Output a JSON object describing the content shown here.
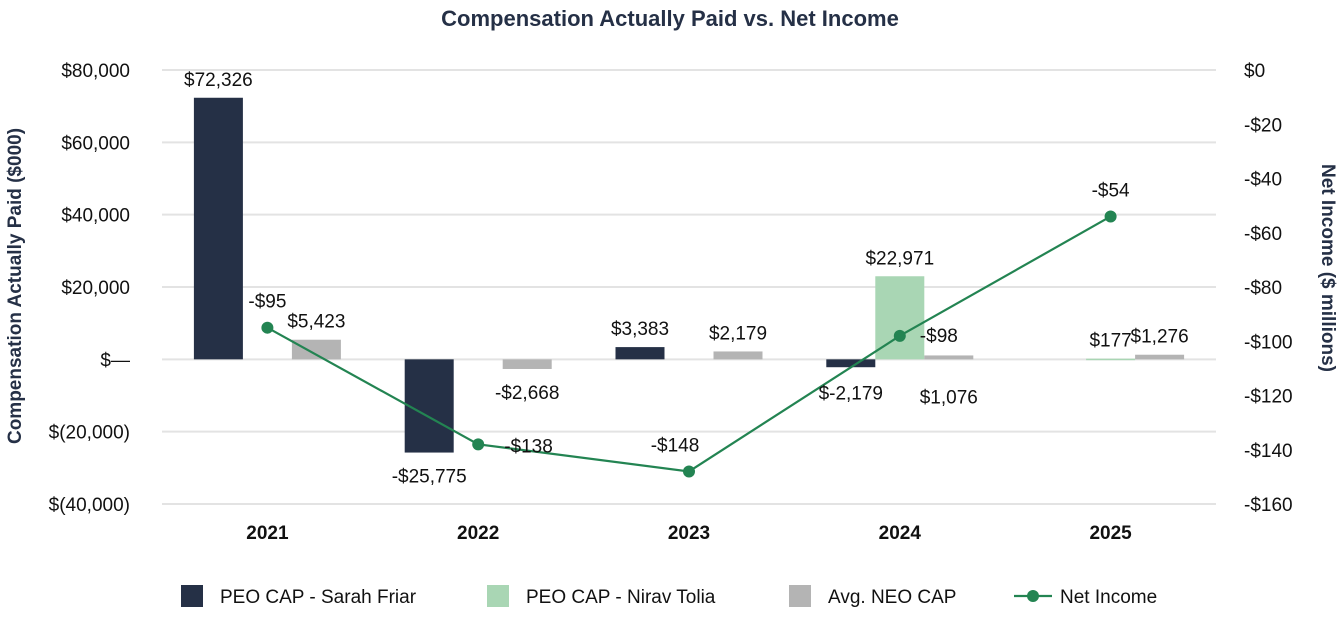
{
  "chart_data": {
    "type": "bar",
    "title": "Compensation Actually Paid vs. Net Income",
    "ylabel": "Compensation Actually Paid ($000)",
    "y2label": "Net Income ($ millions)",
    "categories": [
      "2021",
      "2022",
      "2023",
      "2024",
      "2025"
    ],
    "ylim": [
      -40000,
      80000
    ],
    "y2lim": [
      -160,
      0
    ],
    "y_ticks": [
      {
        "value": 80000,
        "label": "$80,000"
      },
      {
        "value": 60000,
        "label": "$60,000"
      },
      {
        "value": 40000,
        "label": "$40,000"
      },
      {
        "value": 20000,
        "label": "$20,000"
      },
      {
        "value": 0,
        "label": "$—"
      },
      {
        "value": -20000,
        "label": "$(20,000)"
      },
      {
        "value": -40000,
        "label": "$(40,000)"
      }
    ],
    "y2_ticks": [
      {
        "value": 0,
        "label": "$0"
      },
      {
        "value": -20,
        "label": "-$20"
      },
      {
        "value": -40,
        "label": "-$40"
      },
      {
        "value": -60,
        "label": "-$60"
      },
      {
        "value": -80,
        "label": "-$80"
      },
      {
        "value": -100,
        "label": "-$100"
      },
      {
        "value": -120,
        "label": "-$120"
      },
      {
        "value": -140,
        "label": "-$140"
      },
      {
        "value": -160,
        "label": "-$160"
      }
    ],
    "grid": true,
    "legend_position": "bottom",
    "series": [
      {
        "name": "PEO CAP - Sarah Friar",
        "type": "bar",
        "axis": "left",
        "color": "#253046",
        "values": [
          72326,
          -25775,
          3383,
          -2179,
          null
        ],
        "labels": [
          "$72,326",
          "-$25,775",
          "$3,383",
          "$-2,179",
          ""
        ]
      },
      {
        "name": "PEO CAP - Nirav Tolia",
        "type": "bar",
        "axis": "left",
        "color": "#a9d6b4",
        "values": [
          null,
          null,
          null,
          22971,
          177
        ],
        "labels": [
          "",
          "",
          "",
          "$22,971",
          "$177"
        ]
      },
      {
        "name": "Avg. NEO CAP",
        "type": "bar",
        "axis": "left",
        "color": "#b4b4b4",
        "values": [
          5423,
          -2668,
          2179,
          1076,
          1276
        ],
        "labels": [
          "$5,423",
          "-$2,668",
          "$2,179",
          "$1,076",
          "$1,276"
        ]
      },
      {
        "name": "Net Income",
        "type": "line",
        "axis": "right",
        "color": "#238452",
        "values": [
          -95,
          -138,
          -148,
          -98,
          -54
        ],
        "labels": [
          "-$95",
          "-$138",
          "-$148",
          "-$98",
          "-$54"
        ]
      }
    ]
  }
}
